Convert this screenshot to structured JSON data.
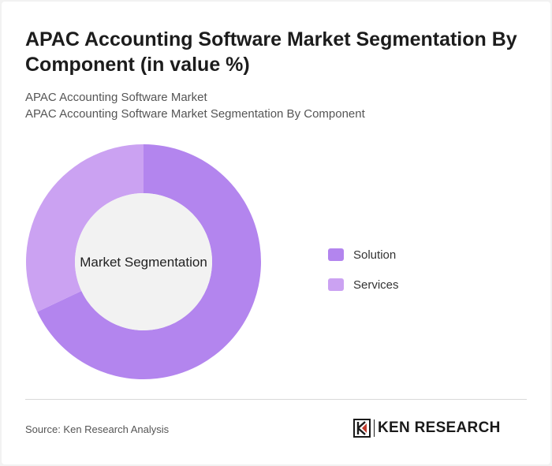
{
  "title": "APAC Accounting Software Market Segmentation By Component (in value %)",
  "subtitle_1": "APAC Accounting Software Market",
  "subtitle_2": "APAC Accounting Software Market Segmentation By Component",
  "source": "Source: Ken Research Analysis",
  "logo_text": "KEN RESEARCH",
  "chart_data": {
    "type": "pie",
    "style": "donut",
    "center_label": "Market Segmentation",
    "categories": [
      "Solution",
      "Services"
    ],
    "values": [
      68,
      32
    ],
    "colors": [
      "#b385ee",
      "#cba2f2"
    ],
    "legend_position": "right"
  },
  "colors": {
    "center_fill": "#f2f2f2",
    "divider": "#d9d9d9"
  }
}
